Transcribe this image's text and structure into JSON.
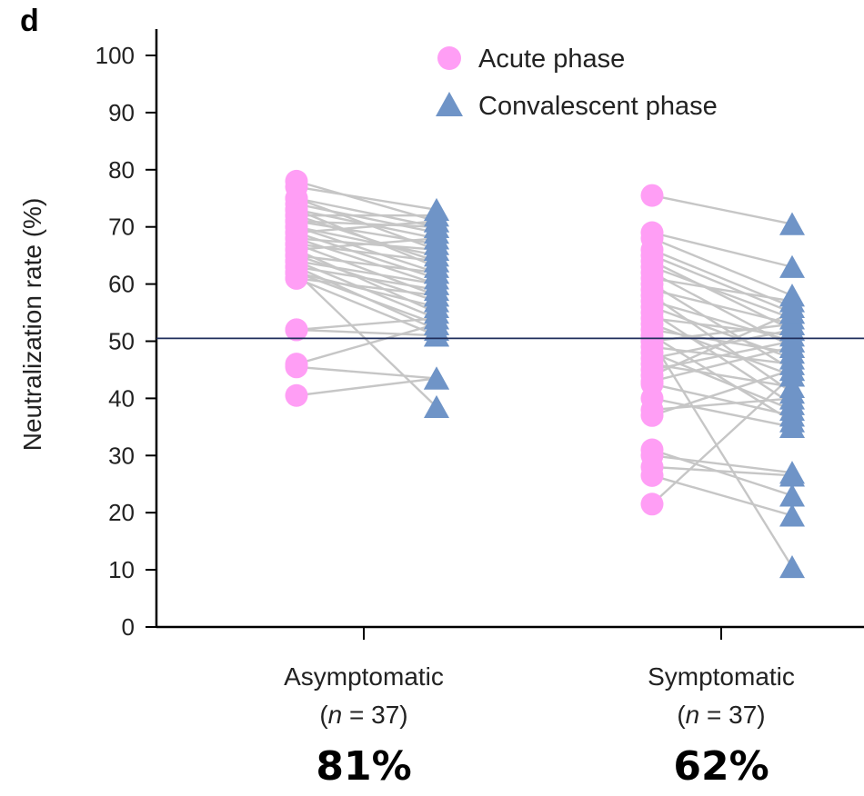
{
  "panel_label": "d",
  "chart_data": {
    "type": "scatter",
    "title": "",
    "xlabel": "",
    "ylabel": "Neutralization rate (%)",
    "ylim": [
      0,
      100
    ],
    "yticks": [
      0,
      10,
      20,
      30,
      40,
      50,
      60,
      70,
      80,
      90,
      100
    ],
    "threshold_line": 50.5,
    "legend": {
      "placement": "top-center",
      "entries": [
        {
          "label": "Acute phase",
          "marker": "circle",
          "color": "#ff9ef5"
        },
        {
          "label": "Convalescent phase",
          "marker": "triangle",
          "color": "#6f94c7"
        }
      ]
    },
    "groups": [
      {
        "name": "Asymptomatic",
        "n_label": "(n = 37)",
        "n_prefix": "(",
        "n_italic": "n",
        "n_suffix": " = 37)",
        "percent": "81%",
        "pairs": [
          [
            78,
            71
          ],
          [
            77,
            73
          ],
          [
            75,
            70
          ],
          [
            75,
            66
          ],
          [
            74,
            69
          ],
          [
            73,
            68
          ],
          [
            73,
            63
          ],
          [
            72,
            72
          ],
          [
            72,
            64
          ],
          [
            71,
            70
          ],
          [
            71,
            67
          ],
          [
            70,
            65
          ],
          [
            70,
            62
          ],
          [
            69,
            71
          ],
          [
            69,
            61
          ],
          [
            68,
            66
          ],
          [
            68,
            60
          ],
          [
            67,
            64
          ],
          [
            67,
            58
          ],
          [
            66,
            68
          ],
          [
            66,
            55
          ],
          [
            65,
            62
          ],
          [
            65,
            57
          ],
          [
            64,
            54
          ],
          [
            64,
            60
          ],
          [
            63,
            52
          ],
          [
            63,
            59
          ],
          [
            62,
            56
          ],
          [
            62,
            53
          ],
          [
            61,
            51
          ],
          [
            61,
            58
          ],
          [
            52,
            54
          ],
          [
            52,
            51
          ],
          [
            45.5,
            43.5
          ],
          [
            46,
            53
          ],
          [
            40.5,
            43.5
          ],
          [
            62,
            38.5
          ]
        ]
      },
      {
        "name": "Symptomatic",
        "n_label": "(n = 37)",
        "n_prefix": "(",
        "n_italic": "n",
        "n_suffix": " = 37)",
        "percent": "62%",
        "pairs": [
          [
            75.5,
            70.5
          ],
          [
            69,
            63
          ],
          [
            68,
            58
          ],
          [
            66,
            56
          ],
          [
            65,
            55
          ],
          [
            64,
            52
          ],
          [
            63,
            54
          ],
          [
            62,
            49
          ],
          [
            61,
            57
          ],
          [
            60,
            45
          ],
          [
            59,
            53
          ],
          [
            58,
            41
          ],
          [
            57,
            50
          ],
          [
            56,
            47
          ],
          [
            55,
            39
          ],
          [
            54,
            51
          ],
          [
            53,
            44
          ],
          [
            52,
            48
          ],
          [
            51,
            36
          ],
          [
            50,
            53
          ],
          [
            49,
            46
          ],
          [
            48,
            38
          ],
          [
            47,
            52
          ],
          [
            46,
            42
          ],
          [
            45,
            50
          ],
          [
            44,
            55
          ],
          [
            43,
            49
          ],
          [
            42.5,
            37
          ],
          [
            38,
            40
          ],
          [
            37,
            45
          ],
          [
            31,
            23
          ],
          [
            30,
            27
          ],
          [
            28,
            26.5
          ],
          [
            26.5,
            19.5
          ],
          [
            21.5,
            44
          ],
          [
            50,
            10.5
          ],
          [
            40,
            35
          ]
        ]
      }
    ]
  }
}
